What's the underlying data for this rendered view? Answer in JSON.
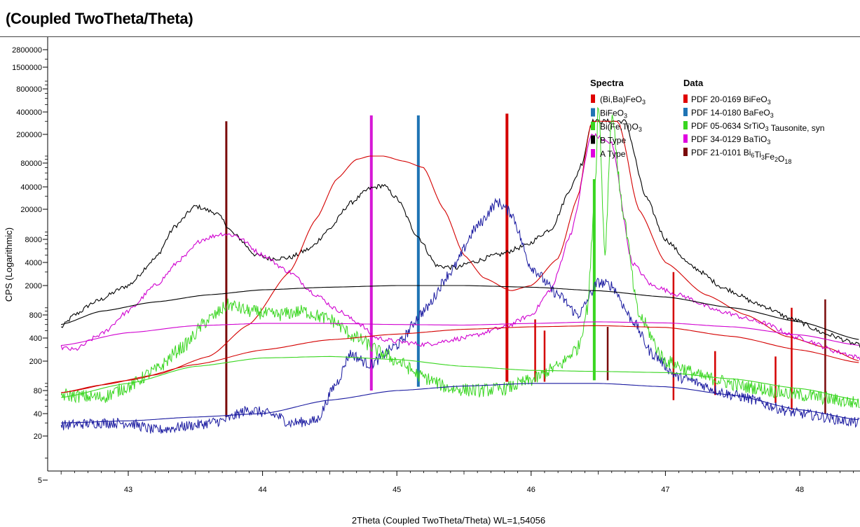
{
  "title": "(Coupled TwoTheta/Theta)",
  "chart_data": {
    "type": "line",
    "xlabel": "2Theta (Coupled TwoTheta/Theta) WL=1,54056",
    "ylabel": "CPS (Logarithmic)",
    "xlim": [
      42.5,
      48.45
    ],
    "ylim": [
      4.5,
      3000000
    ],
    "yscale": "log",
    "x_ticks": [
      43,
      44,
      45,
      46,
      47,
      48
    ],
    "y_ticks": [
      {
        "value": 2800000,
        "label": "2800000"
      },
      {
        "value": 1500000,
        "label": "1500000"
      },
      {
        "value": 800000,
        "label": "800000"
      },
      {
        "value": 400000,
        "label": "400000"
      },
      {
        "value": 200000,
        "label": "200000"
      },
      {
        "value": 80000,
        "label": "80000"
      },
      {
        "value": 40000,
        "label": "40000"
      },
      {
        "value": 20000,
        "label": "20000"
      },
      {
        "value": 8000,
        "label": "8000"
      },
      {
        "value": 4000,
        "label": "4000"
      },
      {
        "value": 2000,
        "label": "2000"
      },
      {
        "value": 800,
        "label": "800"
      },
      {
        "value": 400,
        "label": "400"
      },
      {
        "value": 200,
        "label": "200"
      },
      {
        "value": 80,
        "label": "80"
      },
      {
        "value": 40,
        "label": "40"
      },
      {
        "value": 20,
        "label": "20"
      },
      {
        "value": 5,
        "label": "5"
      }
    ],
    "series": [
      {
        "name": "B Type",
        "color": "#000000",
        "x": [
          42.5,
          42.6,
          42.75,
          43,
          43.2,
          43.35,
          43.5,
          43.65,
          43.8,
          43.95,
          44.05,
          44.2,
          44.35,
          44.5,
          44.65,
          44.8,
          44.9,
          45.0,
          45.15,
          45.3,
          45.45,
          45.55,
          45.75,
          45.95,
          46.15,
          46.3,
          46.38,
          46.45,
          46.7,
          46.85,
          47.0,
          47.2,
          47.45,
          47.7,
          47.95,
          48.2,
          48.45
        ],
        "y": [
          550,
          800,
          1200,
          2000,
          4500,
          12000,
          22000,
          18000,
          9000,
          5000,
          4500,
          4600,
          6000,
          11000,
          24000,
          38000,
          42000,
          28000,
          9000,
          3600,
          3400,
          4000,
          5000,
          6500,
          11000,
          40000,
          80000,
          300000,
          300000,
          30000,
          8000,
          3500,
          1800,
          1100,
          700,
          450,
          320
        ],
        "noise": 0.06
      },
      {
        "name": "(Bi,Ba)FeO3",
        "color": "#d40000",
        "x": [
          42.5,
          42.8,
          43.2,
          43.6,
          43.9,
          44.2,
          44.4,
          44.55,
          44.7,
          44.8,
          44.9,
          45.05,
          45.2,
          45.35,
          45.5,
          45.65,
          45.85,
          46.0,
          46.2,
          46.35,
          46.45,
          46.65,
          46.8,
          47.0,
          47.3,
          47.6,
          47.9,
          48.2,
          48.45
        ],
        "y": [
          75,
          95,
          130,
          230,
          600,
          3000,
          15000,
          50000,
          90000,
          100000,
          100000,
          85000,
          70000,
          20000,
          5000,
          2500,
          1700,
          2000,
          4500,
          30000,
          300000,
          300000,
          20000,
          4000,
          1500,
          800,
          420,
          300,
          200
        ]
      },
      {
        "name": "A Type",
        "color": "#d000d0",
        "x": [
          42.5,
          42.6,
          42.8,
          43.0,
          43.2,
          43.4,
          43.55,
          43.7,
          43.8,
          44.0,
          44.2,
          44.4,
          44.55,
          44.7,
          44.85,
          45.0,
          45.2,
          45.5,
          45.8,
          46.0,
          46.15,
          46.3,
          46.45,
          46.6,
          46.75,
          46.9,
          47.1,
          47.4,
          47.7,
          48.0,
          48.3,
          48.45
        ],
        "y": [
          300,
          280,
          450,
          900,
          2000,
          4500,
          8000,
          9500,
          9000,
          5000,
          3000,
          1500,
          950,
          650,
          400,
          360,
          330,
          400,
          550,
          800,
          1800,
          10000,
          200000,
          150000,
          4000,
          2000,
          1500,
          900,
          650,
          400,
          260,
          220
        ],
        "noise": 0.06
      },
      {
        "name": "BiFeO3",
        "color": "#1a1aa0",
        "x": [
          42.5,
          42.8,
          43.0,
          43.2,
          43.5,
          43.7,
          43.9,
          44.1,
          44.2,
          44.4,
          44.55,
          44.65,
          44.8,
          45.0,
          45.2,
          45.4,
          45.6,
          45.75,
          45.85,
          46.0,
          46.2,
          46.35,
          46.5,
          46.6,
          46.75,
          46.9,
          47.1,
          47.5,
          48.0,
          48.45
        ],
        "y": [
          28,
          30,
          30,
          24,
          28,
          32,
          45,
          38,
          30,
          32,
          100,
          250,
          180,
          320,
          900,
          3000,
          12000,
          25000,
          18000,
          3500,
          1500,
          800,
          2200,
          2000,
          700,
          250,
          120,
          70,
          40,
          30
        ],
        "noise": 0.14
      },
      {
        "name": "Bi(Fe,Ti)O3",
        "color": "#39d620",
        "x": [
          42.5,
          42.8,
          43.0,
          43.2,
          43.4,
          43.6,
          43.75,
          43.9,
          44.1,
          44.3,
          44.5,
          44.7,
          44.9,
          45.0,
          45.2,
          45.4,
          45.6,
          45.8,
          46.0,
          46.2,
          46.35,
          46.42,
          46.48,
          46.5,
          46.55,
          46.6,
          46.68,
          46.8,
          47.0,
          47.3,
          47.6,
          48.0,
          48.45
        ],
        "y": [
          70,
          65,
          90,
          150,
          300,
          700,
          1100,
          900,
          800,
          900,
          700,
          400,
          250,
          200,
          120,
          85,
          80,
          85,
          110,
          170,
          300,
          1000,
          50000,
          600000,
          5000,
          400000,
          20000,
          800,
          200,
          120,
          90,
          70,
          55
        ],
        "noise": 0.18
      },
      {
        "name": "B Type background",
        "color": "#000000",
        "x": [
          42.5,
          42.8,
          43.2,
          43.6,
          44.0,
          44.5,
          45.0,
          45.5,
          46.0,
          46.5,
          47.0,
          47.5,
          48.0,
          48.45
        ],
        "y": [
          600,
          900,
          1200,
          1500,
          1750,
          1900,
          2000,
          2000,
          1900,
          1700,
          1400,
          1000,
          650,
          380
        ]
      },
      {
        "name": "A Type background",
        "color": "#d000d0",
        "x": [
          42.5,
          43.0,
          43.5,
          44.0,
          44.5,
          45.0,
          45.5,
          46.0,
          46.5,
          47.0,
          47.5,
          48.0,
          48.45
        ],
        "y": [
          320,
          470,
          580,
          620,
          620,
          600,
          590,
          620,
          650,
          630,
          560,
          440,
          320
        ]
      },
      {
        "name": "(Bi,Ba)FeO3 background",
        "color": "#d40000",
        "x": [
          42.5,
          43.0,
          43.5,
          44.0,
          44.5,
          45.0,
          45.5,
          46.0,
          46.5,
          47.0,
          47.5,
          48.0,
          48.45
        ],
        "y": [
          75,
          110,
          180,
          280,
          380,
          450,
          520,
          560,
          580,
          550,
          420,
          280,
          190
        ]
      },
      {
        "name": "Bi(Fe,Ti)O3 background",
        "color": "#39d620",
        "x": [
          42.5,
          43.0,
          43.5,
          44.0,
          44.5,
          45.0,
          45.5,
          46.0,
          46.5,
          47.0,
          47.5,
          48.0,
          48.45
        ],
        "y": [
          65,
          100,
          170,
          220,
          230,
          210,
          170,
          150,
          145,
          140,
          115,
          85,
          60
        ]
      },
      {
        "name": "BiFeO3 background",
        "color": "#1a1aa0",
        "x": [
          42.5,
          43.0,
          43.5,
          44.0,
          44.5,
          45.0,
          45.5,
          46.0,
          46.5,
          47.0,
          47.5,
          48.0,
          48.45
        ],
        "y": [
          30,
          32,
          36,
          40,
          60,
          80,
          92,
          100,
          100,
          90,
          70,
          45,
          33
        ]
      }
    ],
    "reference_lines": [
      {
        "x": 43.73,
        "ylow": 36,
        "yhigh": 300000,
        "color": "#7a0a0a",
        "width": 3
      },
      {
        "x": 44.81,
        "ylow": 80,
        "yhigh": 360000,
        "color": "#d618d6",
        "width": 4
      },
      {
        "x": 45.16,
        "ylow": 90,
        "yhigh": 360000,
        "color": "#1f74b4",
        "width": 4
      },
      {
        "x": 45.82,
        "ylow": 105,
        "yhigh": 380000,
        "color": "#d40000",
        "width": 4
      },
      {
        "x": 46.03,
        "ylow": 105,
        "yhigh": 700,
        "color": "#d40000",
        "width": 2.5
      },
      {
        "x": 46.1,
        "ylow": 105,
        "yhigh": 500,
        "color": "#d40000",
        "width": 2.5
      },
      {
        "x": 46.47,
        "ylow": 110,
        "yhigh": 50000,
        "color": "#39d620",
        "width": 4
      },
      {
        "x": 46.57,
        "ylow": 110,
        "yhigh": 560,
        "color": "#7a0a0a",
        "width": 2.5
      },
      {
        "x": 47.06,
        "ylow": 60,
        "yhigh": 3000,
        "color": "#d40000",
        "width": 2.5
      },
      {
        "x": 47.37,
        "ylow": 70,
        "yhigh": 270,
        "color": "#d40000",
        "width": 2.5
      },
      {
        "x": 47.82,
        "ylow": 55,
        "yhigh": 230,
        "color": "#d40000",
        "width": 2.5
      },
      {
        "x": 47.94,
        "ylow": 45,
        "yhigh": 1000,
        "color": "#d40000",
        "width": 2.5
      },
      {
        "x": 48.19,
        "ylow": 40,
        "yhigh": 1300,
        "color": "#7a0a0a",
        "width": 2.5
      }
    ],
    "legend_placement": "top-right",
    "legend": {
      "spectra_title": "Spectra",
      "data_title": "Data",
      "spectra": [
        {
          "label": "(Bi,Ba)FeO3",
          "color": "#e00000"
        },
        {
          "label": "BiFeO3",
          "color": "#1f74b4"
        },
        {
          "label": "Bi(Fe,Ti)O3",
          "color": "#39d620"
        },
        {
          "label": "B Type",
          "color": "#000000"
        },
        {
          "label": "A Type",
          "color": "#e000e0"
        }
      ],
      "data": [
        {
          "label": "PDF 20-0169  BiFeO3",
          "color": "#e00000"
        },
        {
          "label": "PDF 14-0180  BaFeO3",
          "color": "#1f74b4"
        },
        {
          "label": " PDF 05-0634  SrTiO3 Tausonite, syn",
          "color": "#39d620"
        },
        {
          "label": "PDF 34-0129  BaTiO3",
          "color": "#e000e0"
        },
        {
          "label": "PDF 21-0101  Bi6Ti3Fe2O18",
          "color": "#7a0a0a"
        }
      ]
    }
  }
}
